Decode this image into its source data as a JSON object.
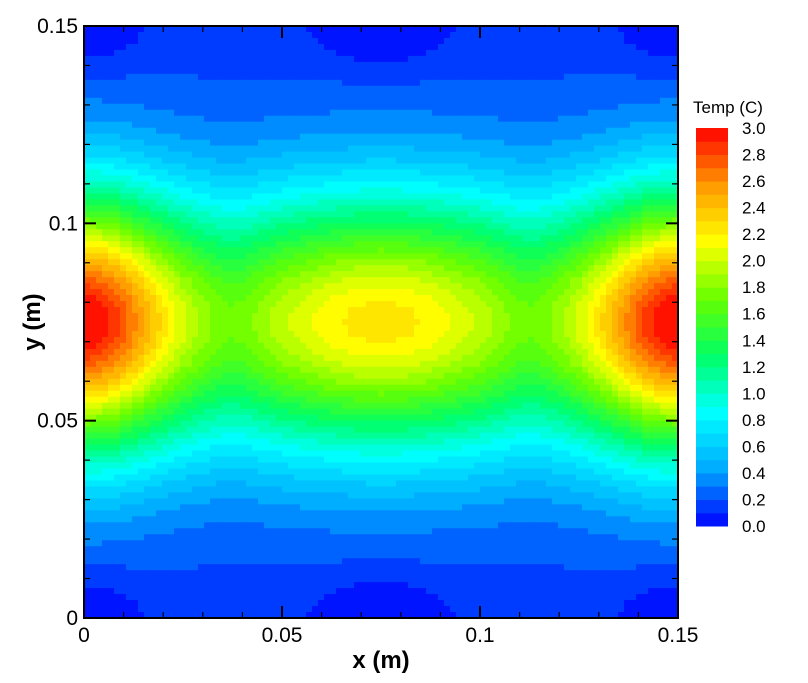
{
  "chart_data": {
    "type": "heatmap",
    "subtype": "filled-contour",
    "xlabel": "x (m)",
    "ylabel": "y (m)",
    "xlim": [
      0,
      0.15
    ],
    "ylim": [
      0,
      0.15
    ],
    "x_ticks": [
      0,
      0.05,
      0.1,
      0.15
    ],
    "x_tick_labels": [
      "0",
      "0.05",
      "0.1",
      "0.15"
    ],
    "y_ticks": [
      0,
      0.05,
      0.1,
      0.15
    ],
    "y_tick_labels": [
      "0",
      "0.05",
      "0.1",
      "0.15"
    ],
    "colorbar": {
      "title": "Temp (C)",
      "min": 0.0,
      "max": 3.0,
      "levels": 30,
      "labels": [
        "3.0",
        "2.8",
        "2.6",
        "2.4",
        "2.2",
        "2.0",
        "1.8",
        "1.6",
        "1.4",
        "1.2",
        "1.0",
        "0.8",
        "0.6",
        "0.4",
        "0.2",
        "0.0"
      ],
      "label_values": [
        3.0,
        2.8,
        2.6,
        2.4,
        2.2,
        2.0,
        1.8,
        1.6,
        1.4,
        1.2,
        1.0,
        0.8,
        0.6,
        0.4,
        0.2,
        0.0
      ],
      "colormap": [
        "#0000ff",
        "#00aaff",
        "#00ffff",
        "#00ff66",
        "#66ff00",
        "#ffff00",
        "#ff9900",
        "#ff0000"
      ]
    },
    "field_features": [
      {
        "description": "hot spot on left edge",
        "x": 0.0,
        "y": 0.075,
        "value": 3.0
      },
      {
        "description": "hot spot on right edge",
        "x": 0.15,
        "y": 0.075,
        "value": 3.0
      },
      {
        "description": "central warm region",
        "x": 0.075,
        "y": 0.075,
        "value": 2.2
      },
      {
        "description": "cool band near bottom edge",
        "x": 0.075,
        "y": 0.0,
        "value": 0.0
      },
      {
        "description": "cool band near top edge",
        "x": 0.075,
        "y": 0.15,
        "value": 0.0
      }
    ]
  }
}
